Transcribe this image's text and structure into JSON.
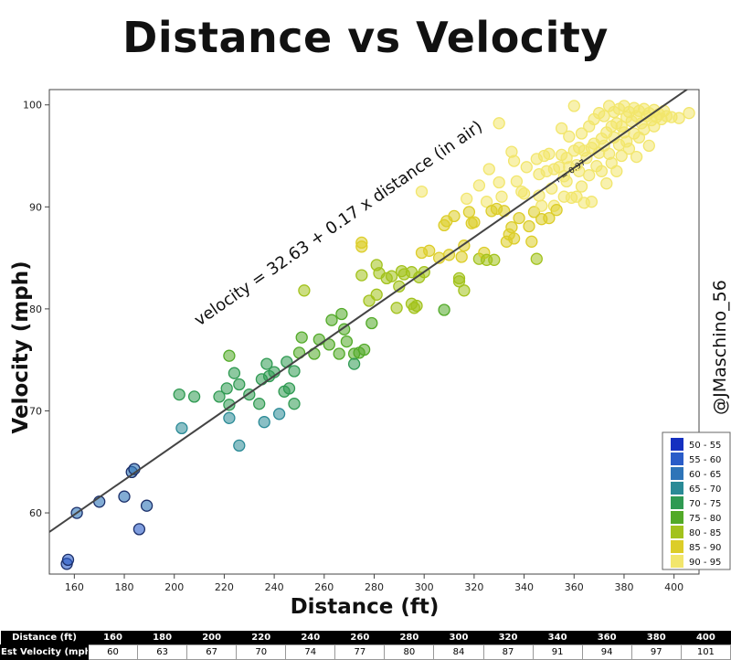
{
  "title": "Distance vs Velocity",
  "watermark": "@JMaschino_56",
  "chart_data": {
    "type": "scatter",
    "xlabel": "Distance (ft)",
    "ylabel": "Velocity (mph)",
    "xlim": [
      150,
      410
    ],
    "ylim": [
      54,
      101.5
    ],
    "xticks": [
      160,
      180,
      200,
      220,
      240,
      260,
      280,
      300,
      320,
      340,
      360,
      380,
      400
    ],
    "yticks": [
      60,
      70,
      80,
      90,
      100
    ],
    "grid": false,
    "legend_position": "bottom-right",
    "regression": {
      "intercept": 32.63,
      "slope": 0.17,
      "label": "velocity = 32.63 + 0.17 x distance (in air)",
      "r_label": "r = 0.97",
      "line_color": "#444444"
    },
    "legend": [
      {
        "label": "50 - 55",
        "color": "#1530c0"
      },
      {
        "label": "55 - 60",
        "color": "#2a5cc8"
      },
      {
        "label": "60 - 65",
        "color": "#2e74b8"
      },
      {
        "label": "65 - 70",
        "color": "#2a8a96"
      },
      {
        "label": "70 - 75",
        "color": "#2f9a52"
      },
      {
        "label": "75 - 80",
        "color": "#52aa28"
      },
      {
        "label": "80 - 85",
        "color": "#a2c21c"
      },
      {
        "label": "85 - 90",
        "color": "#dccd28"
      },
      {
        "label": "90 - 95",
        "color": "#f2e66c"
      }
    ],
    "points": [
      [
        157,
        55.0
      ],
      [
        157.5,
        55.4
      ],
      [
        161,
        60.0
      ],
      [
        170,
        61.1
      ],
      [
        180,
        61.6
      ],
      [
        183,
        64.0
      ],
      [
        184,
        64.3
      ],
      [
        186,
        58.4
      ],
      [
        189,
        60.7
      ],
      [
        202,
        71.6
      ],
      [
        203,
        68.3
      ],
      [
        208,
        71.4
      ],
      [
        218,
        71.4
      ],
      [
        221,
        72.2
      ],
      [
        222,
        75.4
      ],
      [
        222,
        70.6
      ],
      [
        222,
        69.3
      ],
      [
        224,
        73.7
      ],
      [
        226,
        66.6
      ],
      [
        226,
        72.6
      ],
      [
        230,
        71.6
      ],
      [
        234,
        70.7
      ],
      [
        235,
        73.1
      ],
      [
        236,
        68.9
      ],
      [
        237,
        74.6
      ],
      [
        238,
        73.4
      ],
      [
        240,
        73.8
      ],
      [
        242,
        69.7
      ],
      [
        244,
        71.9
      ],
      [
        245,
        74.8
      ],
      [
        246,
        72.2
      ],
      [
        248,
        70.7
      ],
      [
        248,
        73.9
      ],
      [
        250,
        75.7
      ],
      [
        251,
        77.2
      ],
      [
        252,
        81.8
      ],
      [
        256,
        75.6
      ],
      [
        258,
        77.0
      ],
      [
        262,
        76.5
      ],
      [
        263,
        78.9
      ],
      [
        266,
        75.6
      ],
      [
        267,
        79.5
      ],
      [
        268,
        78.0
      ],
      [
        269,
        76.8
      ],
      [
        272,
        75.6
      ],
      [
        272,
        74.6
      ],
      [
        274,
        75.7
      ],
      [
        275,
        83.3
      ],
      [
        275,
        86.5
      ],
      [
        275,
        86.1
      ],
      [
        276,
        76.0
      ],
      [
        278,
        80.8
      ],
      [
        279,
        78.6
      ],
      [
        281,
        84.3
      ],
      [
        281,
        81.4
      ],
      [
        282,
        83.5
      ],
      [
        285,
        83.0
      ],
      [
        287,
        83.2
      ],
      [
        289,
        80.1
      ],
      [
        290,
        82.2
      ],
      [
        291,
        83.7
      ],
      [
        292,
        83.4
      ],
      [
        295,
        83.6
      ],
      [
        295,
        80.5
      ],
      [
        296,
        80.1
      ],
      [
        297,
        80.3
      ],
      [
        298,
        83.1
      ],
      [
        299,
        91.5
      ],
      [
        299,
        85.5
      ],
      [
        300,
        83.6
      ],
      [
        302,
        85.7
      ],
      [
        306,
        85.0
      ],
      [
        308,
        88.2
      ],
      [
        308,
        79.9
      ],
      [
        309,
        88.6
      ],
      [
        310,
        85.3
      ],
      [
        312,
        89.1
      ],
      [
        314,
        83.0
      ],
      [
        314,
        82.7
      ],
      [
        315,
        85.1
      ],
      [
        316,
        81.8
      ],
      [
        316,
        86.2
      ],
      [
        317,
        90.8
      ],
      [
        318,
        89.5
      ],
      [
        319,
        88.4
      ],
      [
        320,
        88.5
      ],
      [
        322,
        92.1
      ],
      [
        322,
        84.9
      ],
      [
        324,
        85.5
      ],
      [
        325,
        90.5
      ],
      [
        325,
        84.8
      ],
      [
        326,
        93.7
      ],
      [
        327,
        89.6
      ],
      [
        328,
        84.8
      ],
      [
        329,
        89.8
      ],
      [
        330,
        98.2
      ],
      [
        330,
        92.4
      ],
      [
        331,
        91.0
      ],
      [
        332,
        89.6
      ],
      [
        333,
        86.6
      ],
      [
        334,
        87.3
      ],
      [
        335,
        95.4
      ],
      [
        335,
        88.0
      ],
      [
        336,
        94.5
      ],
      [
        336,
        86.9
      ],
      [
        337,
        92.5
      ],
      [
        338,
        88.9
      ],
      [
        339,
        91.5
      ],
      [
        340,
        91.3
      ],
      [
        341,
        93.9
      ],
      [
        342,
        88.1
      ],
      [
        343,
        86.6
      ],
      [
        344,
        89.5
      ],
      [
        345,
        84.9
      ],
      [
        345,
        94.7
      ],
      [
        346,
        93.2
      ],
      [
        346,
        91.1
      ],
      [
        347,
        90.1
      ],
      [
        347,
        88.8
      ],
      [
        348,
        95.0
      ],
      [
        349,
        93.5
      ],
      [
        350,
        95.2
      ],
      [
        350,
        88.9
      ],
      [
        351,
        91.8
      ],
      [
        352,
        93.7
      ],
      [
        352,
        90.1
      ],
      [
        353,
        89.7
      ],
      [
        354,
        93.9
      ],
      [
        355,
        97.7
      ],
      [
        355,
        95.1
      ],
      [
        356,
        91.0
      ],
      [
        356,
        93.0
      ],
      [
        357,
        94.8
      ],
      [
        357,
        92.5
      ],
      [
        358,
        96.9
      ],
      [
        358,
        93.9
      ],
      [
        359,
        90.9
      ],
      [
        360,
        99.9
      ],
      [
        360,
        95.5
      ],
      [
        361,
        94.1
      ],
      [
        361,
        91.0
      ],
      [
        362,
        95.8
      ],
      [
        362,
        93.5
      ],
      [
        363,
        97.2
      ],
      [
        363,
        92.0
      ],
      [
        364,
        95.5
      ],
      [
        364,
        90.4
      ],
      [
        365,
        94.8
      ],
      [
        366,
        97.9
      ],
      [
        366,
        93.1
      ],
      [
        367,
        95.8
      ],
      [
        367,
        90.5
      ],
      [
        368,
        98.6
      ],
      [
        368,
        96.2
      ],
      [
        369,
        94.0
      ],
      [
        370,
        99.2
      ],
      [
        370,
        95.3
      ],
      [
        371,
        96.7
      ],
      [
        371,
        93.5
      ],
      [
        372,
        98.9
      ],
      [
        372,
        96.0
      ],
      [
        373,
        97.3
      ],
      [
        373,
        92.3
      ],
      [
        374,
        99.9
      ],
      [
        374,
        95.2
      ],
      [
        375,
        97.9
      ],
      [
        375,
        94.3
      ],
      [
        376,
        99.3
      ],
      [
        376,
        96.8
      ],
      [
        377,
        98.2
      ],
      [
        377,
        93.5
      ],
      [
        378,
        99.6
      ],
      [
        378,
        96.1
      ],
      [
        379,
        97.9
      ],
      [
        379,
        95.0
      ],
      [
        380,
        99.9
      ],
      [
        380,
        97.3
      ],
      [
        381,
        98.8
      ],
      [
        381,
        96.4
      ],
      [
        382,
        99.3
      ],
      [
        382,
        95.7
      ],
      [
        383,
        98.4
      ],
      [
        384,
        99.7
      ],
      [
        384,
        97.2
      ],
      [
        385,
        98.9
      ],
      [
        385,
        94.9
      ],
      [
        386,
        99.4
      ],
      [
        386,
        96.8
      ],
      [
        387,
        98.2
      ],
      [
        388,
        99.6
      ],
      [
        388,
        97.6
      ],
      [
        389,
        98.9
      ],
      [
        390,
        99.2
      ],
      [
        390,
        96.0
      ],
      [
        391,
        98.5
      ],
      [
        392,
        99.5
      ],
      [
        392,
        97.9
      ],
      [
        393,
        98.8
      ],
      [
        394,
        99.1
      ],
      [
        395,
        98.6
      ],
      [
        396,
        99.4
      ],
      [
        397,
        98.9
      ],
      [
        399,
        98.8
      ],
      [
        402,
        98.7
      ],
      [
        406,
        99.2
      ]
    ]
  },
  "est_table": {
    "row_labels": [
      "Distance (ft)",
      "Est Velocity (mph)"
    ],
    "distance": [
      "160",
      "180",
      "200",
      "220",
      "240",
      "260",
      "280",
      "300",
      "320",
      "340",
      "360",
      "380",
      "400"
    ],
    "velocity": [
      "60",
      "63",
      "67",
      "70",
      "74",
      "77",
      "80",
      "84",
      "87",
      "91",
      "94",
      "97",
      "101"
    ]
  }
}
